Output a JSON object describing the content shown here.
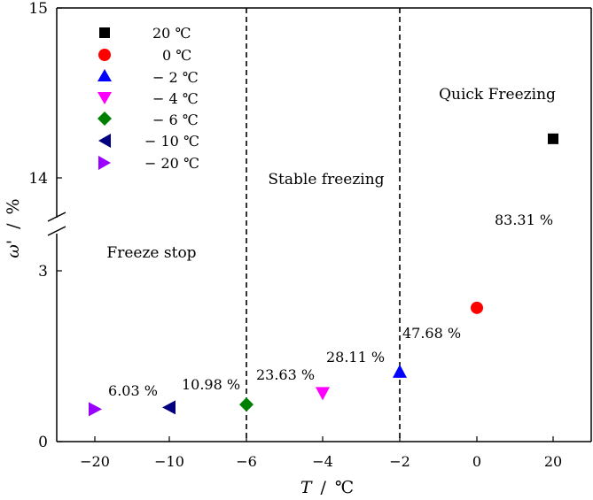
{
  "chart_data": {
    "type": "scatter",
    "title": "",
    "xlabel_var": "T",
    "xlabel_sep": "/",
    "xlabel_unit": "℃",
    "ylabel_var": "ω'",
    "ylabel_sep": "/",
    "ylabel_unit": "%",
    "x_tick_labels": [
      "−20",
      "−10",
      "−6",
      "−4",
      "−2",
      "0",
      "20"
    ],
    "y_ticks_lower": [
      0,
      3
    ],
    "y_ticks_upper": [
      14,
      15
    ],
    "ylim_lower": [
      0,
      3.5
    ],
    "ylim_upper": [
      13.8,
      15
    ],
    "axis_break": "y between 3.5 and 13.8",
    "series": [
      {
        "name": "20 ℃",
        "x": 20,
        "y": 14.23,
        "marker": "square",
        "color": "#000000"
      },
      {
        "name": "0 ℃",
        "x": 0,
        "y": 2.35,
        "marker": "circle",
        "color": "#ff0000"
      },
      {
        "name": "− 2 ℃",
        "x": -2,
        "y": 1.23,
        "marker": "triangle-up",
        "color": "#0000ff"
      },
      {
        "name": "− 4 ℃",
        "x": -4,
        "y": 0.85,
        "marker": "triangle-down",
        "color": "#ff00ff"
      },
      {
        "name": "− 6 ℃",
        "x": -6,
        "y": 0.65,
        "marker": "diamond",
        "color": "#008000"
      },
      {
        "name": "− 10 ℃",
        "x": -10,
        "y": 0.6,
        "marker": "triangle-left",
        "color": "#000080"
      },
      {
        "name": "− 20 ℃",
        "x": -20,
        "y": 0.57,
        "marker": "triangle-right",
        "color": "#9900ff"
      }
    ],
    "annotations": [
      {
        "text": "6.03 %",
        "near": "−20 ℃"
      },
      {
        "text": "10.98 %",
        "near": "−10 ℃"
      },
      {
        "text": "23.63 %",
        "near": "−6 ℃"
      },
      {
        "text": "28.11 %",
        "near": "−4 ℃"
      },
      {
        "text": "47.68 %",
        "near": "−2 ℃"
      },
      {
        "text": "83.31 %",
        "near": "0 ℃"
      }
    ],
    "regions": [
      {
        "label": "Freeze stop",
        "range": "T < −6"
      },
      {
        "label": "Stable freezing",
        "range": "−6 to −2"
      },
      {
        "label": "Quick Freezing",
        "range": "T > −2"
      }
    ],
    "boundaries": [
      -6,
      -2
    ],
    "legend_position": "top-left",
    "grid": false
  }
}
